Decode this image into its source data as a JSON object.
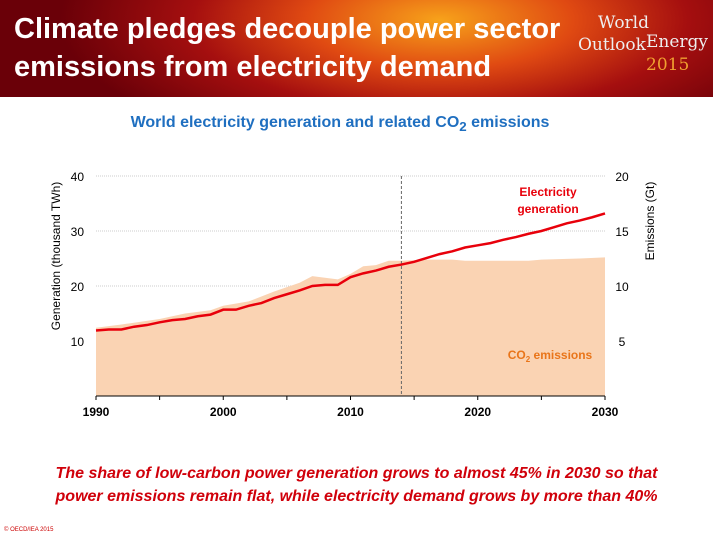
{
  "slide": {
    "title_line1": "Climate pledges decouple power sector",
    "title_line2": "emissions from electricity demand",
    "logo": {
      "word1": "World",
      "word2": "Outlook",
      "word3": "Energy",
      "year": "2015"
    },
    "subtitle": "World electricity generation and related CO2 emissions",
    "note_line1": "The share of low-carbon power generation grows to almost 45% in 2030 so that",
    "note_line2": "power emissions remain flat, while electricity demand grows by more than 40%",
    "copyright": "© OECD/IEA 2015"
  },
  "chart_data": {
    "type": "line+area",
    "title": "World electricity generation and related CO2 emissions",
    "ylabel": "Generation (thousand TWh)",
    "y2label": "Emissions (Gt)",
    "xlim": [
      1990,
      2030
    ],
    "ylim": [
      0,
      40
    ],
    "y2lim": [
      0,
      20
    ],
    "xticks": [
      1990,
      2000,
      2010,
      2020,
      2030
    ],
    "yticks": [
      10,
      20,
      30,
      40
    ],
    "y2ticks": [
      5,
      10,
      15,
      20
    ],
    "grid": true,
    "projection_divider_year": 2014,
    "colors": {
      "generation": "#e8000b",
      "emissions": "#fad3b3",
      "emissions_label": "#e9751a"
    },
    "series": [
      {
        "name": "Electricity generation",
        "axis": "left",
        "x": [
          1990,
          1991,
          1992,
          1993,
          1994,
          1995,
          1996,
          1997,
          1998,
          1999,
          2000,
          2001,
          2002,
          2003,
          2004,
          2005,
          2006,
          2007,
          2008,
          2009,
          2010,
          2011,
          2012,
          2013,
          2014,
          2015,
          2016,
          2017,
          2018,
          2019,
          2020,
          2021,
          2022,
          2023,
          2024,
          2025,
          2026,
          2027,
          2028,
          2029,
          2030
        ],
        "values": [
          11.9,
          12.1,
          12.1,
          12.6,
          12.9,
          13.4,
          13.8,
          14.0,
          14.5,
          14.8,
          15.7,
          15.7,
          16.4,
          16.9,
          17.8,
          18.5,
          19.2,
          20.0,
          20.2,
          20.2,
          21.6,
          22.3,
          22.8,
          23.5,
          23.9,
          24.4,
          25.1,
          25.8,
          26.3,
          27.0,
          27.4,
          27.8,
          28.4,
          28.9,
          29.5,
          30.0,
          30.7,
          31.4,
          31.9,
          32.5,
          33.2
        ]
      },
      {
        "name": "CO2 emissions",
        "axis": "right",
        "x": [
          1990,
          1992,
          1995,
          1997,
          1999,
          2000,
          2002,
          2004,
          2006,
          2007,
          2009,
          2010,
          2011,
          2012,
          2013,
          2014,
          2016,
          2018,
          2019,
          2024,
          2025,
          2028,
          2030
        ],
        "values": [
          6.2,
          6.5,
          7.0,
          7.5,
          7.8,
          8.2,
          8.6,
          9.5,
          10.3,
          10.9,
          10.6,
          11.1,
          11.8,
          11.9,
          12.3,
          12.3,
          12.4,
          12.4,
          12.3,
          12.3,
          12.4,
          12.5,
          12.6
        ]
      }
    ],
    "labels": {
      "generation": "Electricity",
      "generation2": "generation",
      "emissions": "CO2 emissions"
    }
  }
}
